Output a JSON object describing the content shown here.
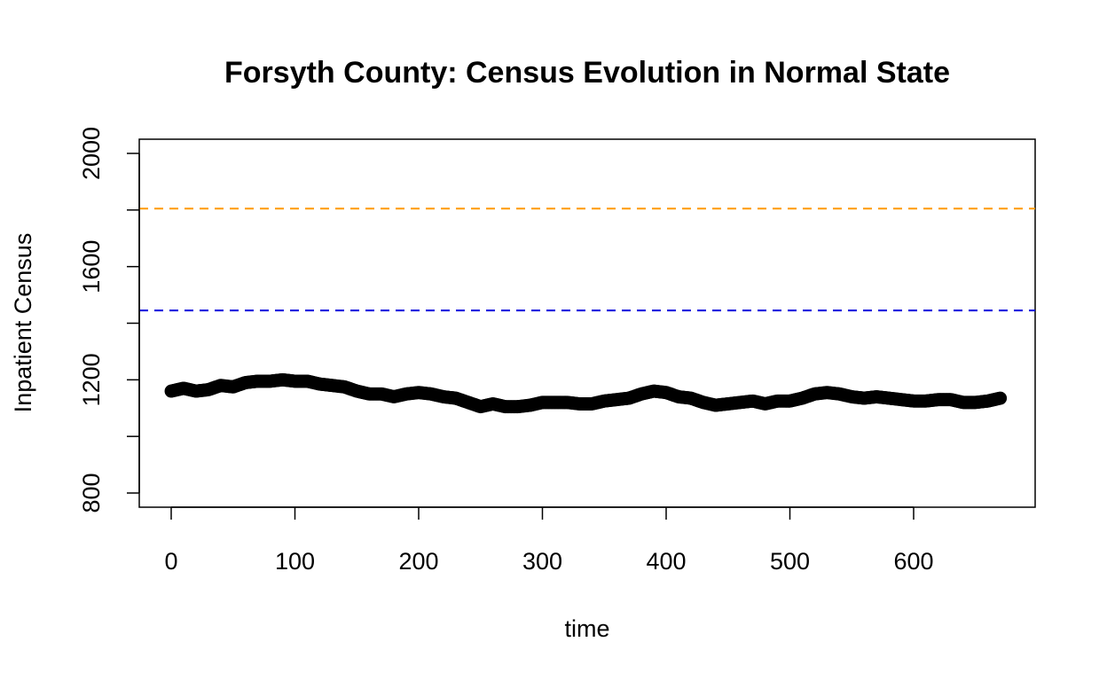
{
  "chart_data": {
    "type": "scatter",
    "title": "Forsyth County: Census Evolution in Normal State",
    "xlabel": "time",
    "ylabel": "Inpatient Census",
    "xlim": [
      0,
      700
    ],
    "ylim": [
      800,
      2050
    ],
    "xticks": [
      0,
      100,
      200,
      300,
      400,
      500,
      600
    ],
    "yticks": [
      800,
      1000,
      1200,
      1400,
      1600,
      1800,
      2000
    ],
    "yticklabels_shown": [
      "800",
      "1200",
      "1600",
      "2000"
    ],
    "grid": false,
    "legend": "none",
    "reference_lines": [
      {
        "y": 1805,
        "color": "#ff9900",
        "style": "dashed"
      },
      {
        "y": 1445,
        "color": "#0000dd",
        "style": "dashed"
      }
    ],
    "series": [
      {
        "color": "#000000",
        "marker": "open-circle",
        "x": [
          0,
          10,
          20,
          30,
          40,
          50,
          60,
          70,
          80,
          90,
          100,
          110,
          120,
          130,
          140,
          150,
          160,
          170,
          180,
          190,
          200,
          210,
          220,
          230,
          240,
          250,
          260,
          270,
          280,
          290,
          300,
          310,
          320,
          330,
          340,
          350,
          360,
          370,
          380,
          390,
          400,
          410,
          420,
          430,
          440,
          450,
          460,
          470,
          480,
          490,
          500,
          510,
          520,
          530,
          540,
          550,
          560,
          570,
          580,
          590,
          600,
          610,
          620,
          630,
          640,
          650,
          660,
          670
        ],
        "y": [
          1160,
          1170,
          1160,
          1165,
          1180,
          1175,
          1190,
          1195,
          1195,
          1200,
          1195,
          1195,
          1185,
          1180,
          1175,
          1160,
          1150,
          1150,
          1140,
          1150,
          1155,
          1150,
          1140,
          1135,
          1120,
          1105,
          1115,
          1105,
          1105,
          1110,
          1120,
          1120,
          1120,
          1115,
          1115,
          1125,
          1130,
          1135,
          1150,
          1160,
          1155,
          1140,
          1135,
          1120,
          1110,
          1115,
          1120,
          1125,
          1115,
          1125,
          1125,
          1135,
          1150,
          1155,
          1150,
          1140,
          1135,
          1140,
          1135,
          1130,
          1125,
          1125,
          1130,
          1130,
          1120,
          1120,
          1125,
          1135
        ]
      }
    ]
  }
}
